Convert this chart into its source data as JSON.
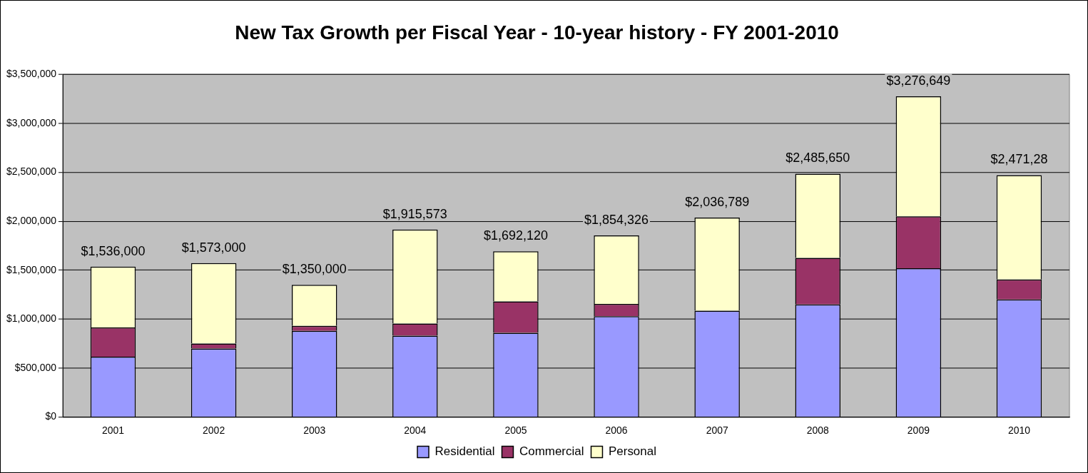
{
  "chart_data": {
    "type": "bar",
    "title": "New Tax Growth per Fiscal Year - 10-year history - FY 2001-2010",
    "categories": [
      "2001",
      "2002",
      "2003",
      "2004",
      "2005",
      "2006",
      "2007",
      "2008",
      "2009",
      "2010"
    ],
    "stacked": true,
    "series": [
      {
        "name": "Residential",
        "color": "#9999ff",
        "values": [
          615000,
          700000,
          880000,
          830000,
          860000,
          1030000,
          1085000,
          1150000,
          1520000,
          1200000
        ]
      },
      {
        "name": "Commercial",
        "color": "#993366",
        "values": [
          300000,
          50000,
          50000,
          125000,
          320000,
          125000,
          0,
          475000,
          530000,
          205000
        ]
      },
      {
        "name": "Personal",
        "color": "#ffffcc",
        "values": [
          621000,
          823000,
          420000,
          960573,
          512120,
          699326,
          951789,
          860650,
          1226649,
          1066280
        ]
      }
    ],
    "totals": [
      "$1,536,000",
      "$1,573,000",
      "$1,350,000",
      "$1,915,573",
      "$1,692,120",
      "$1,854,326",
      "$2,036,789",
      "$2,485,650",
      "$3,276,649",
      "$2,471,28"
    ],
    "ylim": [
      0,
      3500000
    ],
    "yticks": [
      {
        "value": 0,
        "label": "$0"
      },
      {
        "value": 500000,
        "label": "$500,000"
      },
      {
        "value": 1000000,
        "label": "$1,000,000"
      },
      {
        "value": 1500000,
        "label": "$1,500,000"
      },
      {
        "value": 2000000,
        "label": "$2,000,000"
      },
      {
        "value": 2500000,
        "label": "$2,500,000"
      },
      {
        "value": 3000000,
        "label": "$3,000,000"
      },
      {
        "value": 3500000,
        "label": "$3,500,000"
      }
    ],
    "grid": "y",
    "legend": "bottom"
  }
}
